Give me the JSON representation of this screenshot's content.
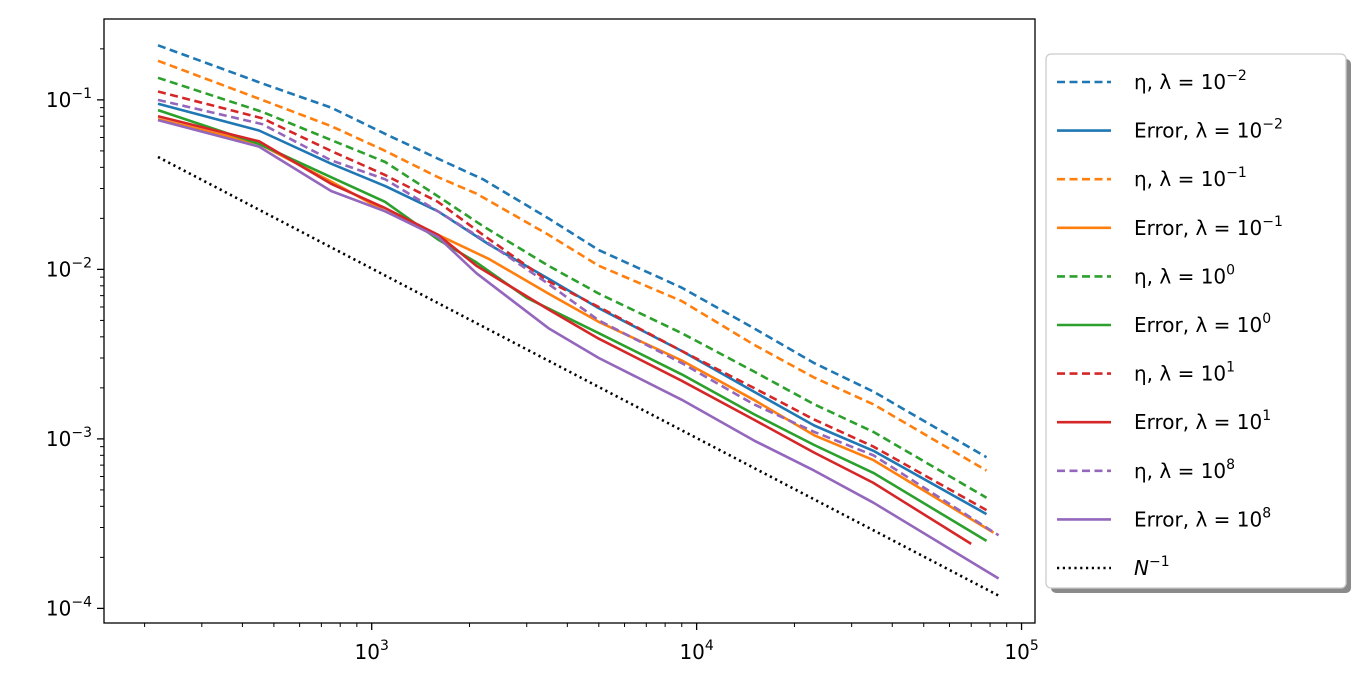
{
  "chart_data": {
    "type": "line",
    "x_scale": "log",
    "y_scale": "log",
    "xlim": [
      150,
      110000
    ],
    "ylim": [
      8.2e-05,
      0.3
    ],
    "grid": false,
    "legend_position": "outside right, top",
    "title": "",
    "xlabel": "",
    "ylabel": "",
    "x_ticks": [
      {
        "value": 1000,
        "mant": "10",
        "exp": "3"
      },
      {
        "value": 10000,
        "mant": "10",
        "exp": "4"
      },
      {
        "value": 100000,
        "mant": "10",
        "exp": "5"
      }
    ],
    "y_ticks": [
      {
        "value": 0.0001,
        "mant": "10",
        "exp": "−4"
      },
      {
        "value": 0.001,
        "mant": "10",
        "exp": "−3"
      },
      {
        "value": 0.01,
        "mant": "10",
        "exp": "−2"
      },
      {
        "value": 0.1,
        "mant": "10",
        "exp": "−1"
      }
    ],
    "series": [
      {
        "name": "η, λ = 10^−2",
        "legend": {
          "pre": "η, λ = 10",
          "exp": "−2"
        },
        "color": "#1f77b4",
        "style": "dashed",
        "x": [
          220,
          460,
          750,
          1100,
          1600,
          2200,
          3500,
          5000,
          9000,
          15000,
          23000,
          35000,
          78000
        ],
        "y": [
          0.21,
          0.125,
          0.09,
          0.063,
          0.045,
          0.034,
          0.02,
          0.013,
          0.0078,
          0.0045,
          0.0028,
          0.0019,
          0.00078
        ]
      },
      {
        "name": "Error, λ = 10^−2",
        "legend": {
          "pre": "Error, λ = 10",
          "exp": "−2"
        },
        "color": "#1f77b4",
        "style": "solid",
        "x": [
          220,
          450,
          750,
          1100,
          1600,
          2300,
          3500,
          5000,
          9000,
          15000,
          23000,
          35000,
          78000
        ],
        "y": [
          0.095,
          0.066,
          0.042,
          0.031,
          0.022,
          0.014,
          0.0088,
          0.0059,
          0.0033,
          0.0019,
          0.0012,
          0.00085,
          0.00036
        ]
      },
      {
        "name": "η, λ = 10^−1",
        "legend": {
          "pre": "η, λ = 10",
          "exp": "−1"
        },
        "color": "#ff7f0e",
        "style": "dashed",
        "x": [
          220,
          460,
          750,
          1100,
          1600,
          2100,
          3500,
          5000,
          9000,
          15000,
          23000,
          35000,
          78000
        ],
        "y": [
          0.17,
          0.1,
          0.07,
          0.05,
          0.035,
          0.028,
          0.016,
          0.0105,
          0.0065,
          0.0036,
          0.0023,
          0.0016,
          0.00065
        ]
      },
      {
        "name": "Error, λ = 10^−1",
        "legend": {
          "pre": "Error, λ = 10",
          "exp": "−1"
        },
        "color": "#ff7f0e",
        "style": "solid",
        "x": [
          220,
          450,
          750,
          1100,
          1600,
          2300,
          3500,
          5000,
          9000,
          15000,
          23000,
          35000,
          82000
        ],
        "y": [
          0.077,
          0.055,
          0.033,
          0.022,
          0.016,
          0.0115,
          0.0072,
          0.0049,
          0.0029,
          0.0017,
          0.00105,
          0.00075,
          0.00028
        ]
      },
      {
        "name": "η, λ = 10^0",
        "legend": {
          "pre": "η, λ = 10",
          "exp": "0"
        },
        "color": "#2ca02c",
        "style": "dashed",
        "x": [
          220,
          460,
          750,
          1100,
          1600,
          2200,
          3500,
          5000,
          9000,
          15000,
          23000,
          35000,
          78000
        ],
        "y": [
          0.135,
          0.085,
          0.058,
          0.043,
          0.027,
          0.018,
          0.0105,
          0.0072,
          0.0042,
          0.0025,
          0.0016,
          0.0011,
          0.00045
        ]
      },
      {
        "name": "Error, λ = 10^0",
        "legend": {
          "pre": "Error, λ = 10",
          "exp": "0"
        },
        "color": "#2ca02c",
        "style": "solid",
        "x": [
          220,
          450,
          750,
          1100,
          1600,
          2100,
          3000,
          5000,
          9000,
          15000,
          23000,
          35000,
          78000
        ],
        "y": [
          0.087,
          0.055,
          0.035,
          0.025,
          0.015,
          0.011,
          0.0068,
          0.0042,
          0.0024,
          0.0014,
          0.00092,
          0.00063,
          0.00025
        ]
      },
      {
        "name": "η, λ = 10^1",
        "legend": {
          "pre": "η, λ = 10",
          "exp": "1"
        },
        "color": "#d62728",
        "style": "dashed",
        "x": [
          220,
          460,
          750,
          1100,
          1600,
          2200,
          3500,
          5000,
          9000,
          15000,
          23000,
          35000,
          78000
        ],
        "y": [
          0.112,
          0.078,
          0.05,
          0.036,
          0.025,
          0.016,
          0.0085,
          0.006,
          0.0033,
          0.002,
          0.0013,
          0.0009,
          0.00038
        ]
      },
      {
        "name": "Error, λ = 10^1",
        "legend": {
          "pre": "Error, λ = 10",
          "exp": "1"
        },
        "color": "#d62728",
        "style": "solid",
        "x": [
          220,
          450,
          750,
          1100,
          1600,
          2100,
          3500,
          5000,
          9000,
          15000,
          23000,
          35000,
          70000
        ],
        "y": [
          0.08,
          0.057,
          0.032,
          0.023,
          0.016,
          0.0105,
          0.0058,
          0.0039,
          0.0022,
          0.0013,
          0.00083,
          0.00055,
          0.00024
        ]
      },
      {
        "name": "η, λ = 10^8",
        "legend": {
          "pre": "η, λ = 10",
          "exp": "8"
        },
        "color": "#9467bd",
        "style": "dashed",
        "x": [
          220,
          460,
          750,
          1100,
          1600,
          2200,
          3500,
          5000,
          9000,
          15000,
          23000,
          35000,
          85000
        ],
        "y": [
          0.1,
          0.072,
          0.044,
          0.034,
          0.022,
          0.015,
          0.0082,
          0.005,
          0.0028,
          0.0016,
          0.0011,
          0.0008,
          0.00027
        ]
      },
      {
        "name": "Error, λ = 10^8",
        "legend": {
          "pre": "Error, λ = 10",
          "exp": "8"
        },
        "color": "#9467bd",
        "style": "solid",
        "x": [
          220,
          450,
          750,
          1100,
          1600,
          2100,
          3500,
          5000,
          9000,
          15000,
          23000,
          35000,
          85000
        ],
        "y": [
          0.076,
          0.053,
          0.029,
          0.022,
          0.0155,
          0.0095,
          0.0045,
          0.003,
          0.0017,
          0.00098,
          0.00065,
          0.00042,
          0.00015
        ]
      },
      {
        "name": "N^−1",
        "legend": {
          "pre": "N",
          "exp": "−1",
          "italic": true
        },
        "color": "#000000",
        "style": "dotted",
        "x": [
          220,
          85000
        ],
        "y": [
          0.046,
          0.000119
        ]
      }
    ]
  }
}
